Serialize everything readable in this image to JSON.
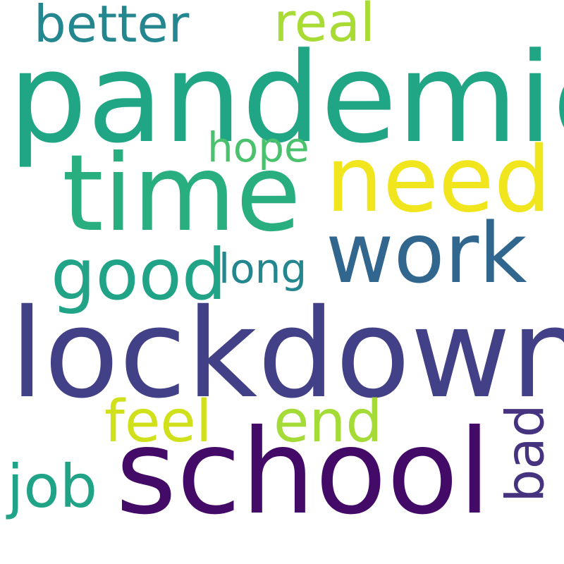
{
  "words": [
    {
      "text": "pandemic",
      "color": "#21a685"
    },
    {
      "text": "lockdown",
      "color": "#424086"
    },
    {
      "text": "school",
      "color": "#440a68"
    },
    {
      "text": "time",
      "color": "#29af7f"
    },
    {
      "text": "need",
      "color": "#f1e51d"
    },
    {
      "text": "work",
      "color": "#31668e"
    },
    {
      "text": "good",
      "color": "#20a386"
    },
    {
      "text": "better",
      "color": "#24868e"
    },
    {
      "text": "real",
      "color": "#a8db34"
    },
    {
      "text": "hope",
      "color": "#4ac26d"
    },
    {
      "text": "long",
      "color": "#24868e"
    },
    {
      "text": "feel",
      "color": "#d0e11c"
    },
    {
      "text": "end",
      "color": "#a5db36"
    },
    {
      "text": "bad",
      "color": "#46337f"
    },
    {
      "text": "job",
      "color": "#20a386"
    }
  ]
}
